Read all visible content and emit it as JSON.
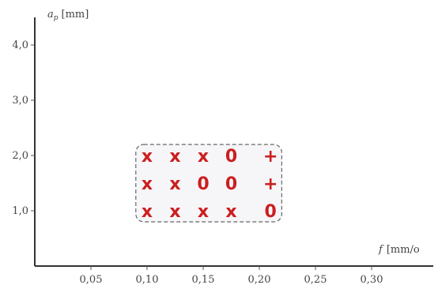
{
  "chart_data": {
    "type": "scatter",
    "x_axis": {
      "label_symbol": "f",
      "label_unit": "[mm/o",
      "ticks": [
        "0,05",
        "0,10",
        "0,15",
        "0,20",
        "0,25",
        "0,30"
      ],
      "tick_values": [
        0.05,
        0.1,
        0.15,
        0.2,
        0.25,
        0.3
      ],
      "range": [
        0,
        0.35
      ]
    },
    "y_axis": {
      "label_symbol": "a",
      "label_subscript": "p",
      "label_unit": "[mm]",
      "ticks": [
        "1,0",
        "2,0",
        "3,0",
        "4,0"
      ],
      "tick_values": [
        1.0,
        2.0,
        3.0,
        4.0
      ],
      "range": [
        0,
        4.5
      ]
    },
    "region": {
      "x_range": [
        0.09,
        0.22
      ],
      "y_range": [
        0.8,
        2.2
      ]
    },
    "points": [
      {
        "x": 0.1,
        "y": 2.0,
        "symbol": "x"
      },
      {
        "x": 0.125,
        "y": 2.0,
        "symbol": "x"
      },
      {
        "x": 0.15,
        "y": 2.0,
        "symbol": "x"
      },
      {
        "x": 0.175,
        "y": 2.0,
        "symbol": "0"
      },
      {
        "x": 0.21,
        "y": 2.0,
        "symbol": "+"
      },
      {
        "x": 0.1,
        "y": 1.5,
        "symbol": "x"
      },
      {
        "x": 0.125,
        "y": 1.5,
        "symbol": "x"
      },
      {
        "x": 0.15,
        "y": 1.5,
        "symbol": "0"
      },
      {
        "x": 0.175,
        "y": 1.5,
        "symbol": "0"
      },
      {
        "x": 0.21,
        "y": 1.5,
        "symbol": "+"
      },
      {
        "x": 0.1,
        "y": 1.0,
        "symbol": "x"
      },
      {
        "x": 0.125,
        "y": 1.0,
        "symbol": "x"
      },
      {
        "x": 0.15,
        "y": 1.0,
        "symbol": "x"
      },
      {
        "x": 0.175,
        "y": 1.0,
        "symbol": "x"
      },
      {
        "x": 0.21,
        "y": 1.0,
        "symbol": "0"
      }
    ],
    "colors": {
      "marks": "#cc1f1f",
      "axes": "#333333",
      "region_fill": "#f6f6f8"
    },
    "grid": false
  }
}
